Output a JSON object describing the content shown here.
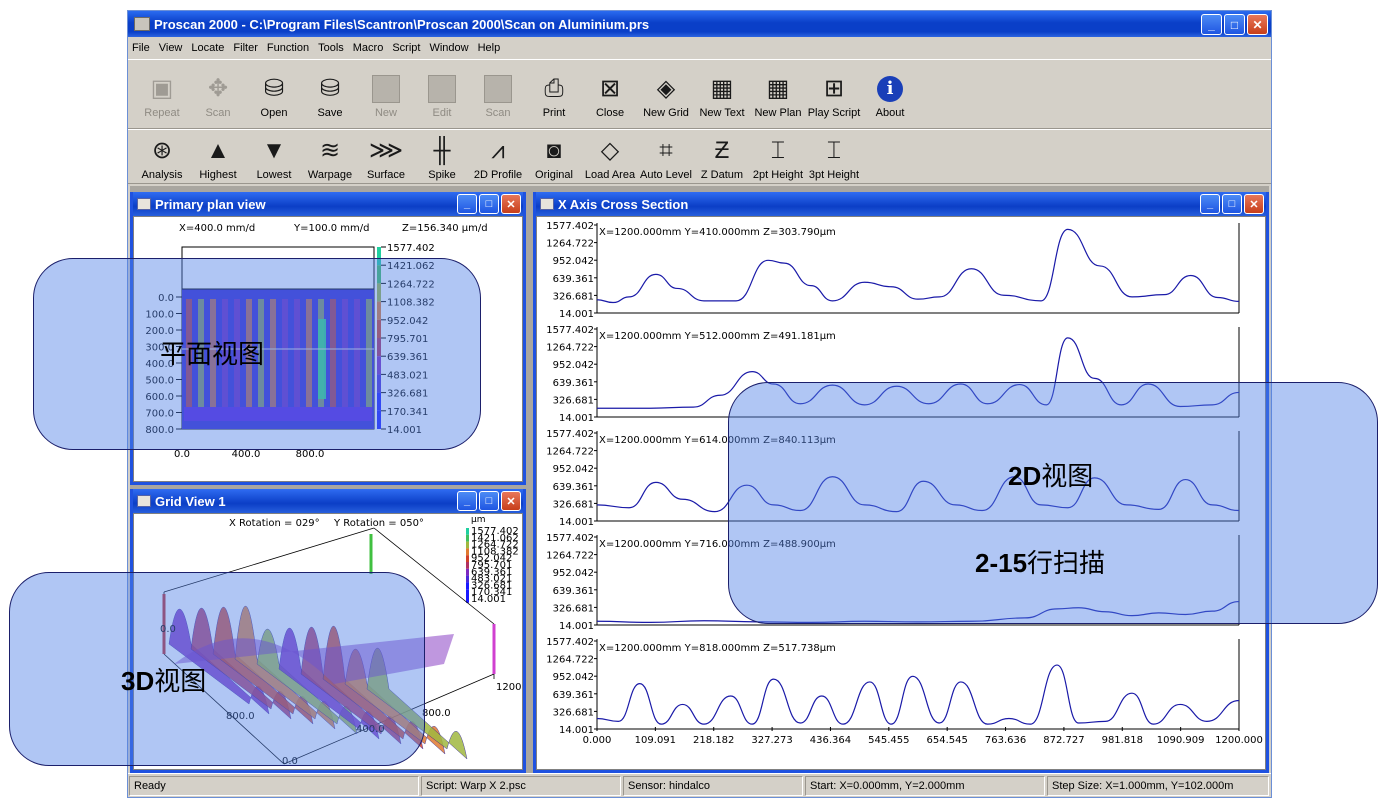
{
  "window": {
    "title": "Proscan 2000 - C:\\Program Files\\Scantron\\Proscan 2000\\Scan on Aluminium.prs",
    "min": "_",
    "max": "□",
    "close": "✕"
  },
  "menu": [
    "File",
    "View",
    "Locate",
    "Filter",
    "Function",
    "Tools",
    "Macro",
    "Script",
    "Window",
    "Help"
  ],
  "toolbar1": [
    {
      "label": "Repeat",
      "icon": "repeat-icon",
      "glyph": "▣",
      "disabled": true
    },
    {
      "label": "Scan",
      "icon": "scan-icon",
      "glyph": "✥",
      "disabled": true
    },
    {
      "label": "Open",
      "icon": "open-icon",
      "glyph": "⛁",
      "disabled": false
    },
    {
      "label": "Save",
      "icon": "save-icon",
      "glyph": "⛁",
      "disabled": false
    },
    {
      "label": "New",
      "icon": "new-icon",
      "glyph": "",
      "disabled": true
    },
    {
      "label": "Edit",
      "icon": "edit-icon",
      "glyph": "",
      "disabled": true
    },
    {
      "label": "Scan",
      "icon": "scan2-icon",
      "glyph": "",
      "disabled": true
    },
    {
      "label": "Print",
      "icon": "print-icon",
      "glyph": "⎙",
      "disabled": false
    },
    {
      "label": "Close",
      "icon": "close-file-icon",
      "glyph": "⊠",
      "disabled": false
    },
    {
      "label": "New Grid",
      "icon": "new-grid-icon",
      "glyph": "◈",
      "disabled": false
    },
    {
      "label": "New Text",
      "icon": "new-text-icon",
      "glyph": "▦",
      "disabled": false
    },
    {
      "label": "New Plan",
      "icon": "new-plan-icon",
      "glyph": "▦",
      "disabled": false
    },
    {
      "label": "Play Script",
      "icon": "play-script-icon",
      "glyph": "⊞",
      "disabled": false
    },
    {
      "label": "About",
      "icon": "about-icon",
      "glyph": "i",
      "disabled": false
    }
  ],
  "toolbar2": [
    {
      "label": "Analysis",
      "icon": "analysis-icon",
      "glyph": "⊛"
    },
    {
      "label": "Highest",
      "icon": "highest-icon",
      "glyph": "▲"
    },
    {
      "label": "Lowest",
      "icon": "lowest-icon",
      "glyph": "▼"
    },
    {
      "label": "Warpage",
      "icon": "warpage-icon",
      "glyph": "≋"
    },
    {
      "label": "Surface",
      "icon": "surface-icon",
      "glyph": "⋙"
    },
    {
      "label": "Spike",
      "icon": "spike-icon",
      "glyph": "╫"
    },
    {
      "label": "2D Profile",
      "icon": "profile-2d-icon",
      "glyph": "⩘"
    },
    {
      "label": "Original",
      "icon": "original-icon",
      "glyph": "◙"
    },
    {
      "label": "Load Area",
      "icon": "load-area-icon",
      "glyph": "◇"
    },
    {
      "label": "Auto Level",
      "icon": "auto-level-icon",
      "glyph": "⌗"
    },
    {
      "label": "Z Datum",
      "icon": "z-datum-icon",
      "glyph": "Ƶ"
    },
    {
      "label": "2pt Height",
      "icon": "two-pt-height-icon",
      "glyph": "⌶"
    },
    {
      "label": "3pt Height",
      "icon": "three-pt-height-icon",
      "glyph": "⌶"
    }
  ],
  "plan": {
    "title": "Primary plan view",
    "readout": {
      "x": "X=400.0 mm/d",
      "y": "Y=100.0 mm/d",
      "z": "Z=156.340 µm/d"
    },
    "yticks": [
      "0.0",
      "100.0",
      "200.0",
      "300.0",
      "400.0",
      "500.0",
      "600.0",
      "700.0",
      "800.0"
    ],
    "xticks": [
      "0.0",
      "400.0",
      "800.0"
    ],
    "colorbar": [
      "1577.402",
      "1421.062",
      "1264.722",
      "1108.382",
      "952.042",
      "795.701",
      "639.361",
      "483.021",
      "326.681",
      "170.341",
      "14.001"
    ]
  },
  "grid": {
    "title": "Grid View 1",
    "xrot": "X Rotation = 029°",
    "yrot": "Y Rotation = 050°",
    "unit": "µm",
    "colorbar": [
      "1577.402",
      "1421.062",
      "1264.722",
      "1108.382",
      "952.042",
      "795.701",
      "639.361",
      "483.021",
      "326.681",
      "170.341",
      "14.001"
    ],
    "axis": [
      "0.0",
      "800.0",
      "400.0",
      "0.0",
      "800.0",
      "1200."
    ]
  },
  "cross": {
    "title": "X Axis Cross Section",
    "yticks": [
      "1577.402",
      "1264.722",
      "952.042",
      "639.361",
      "326.681",
      "14.001"
    ],
    "xticks": [
      "0.000",
      "109.091",
      "218.182",
      "327.273",
      "436.364",
      "545.455",
      "654.545",
      "763.636",
      "872.727",
      "981.818",
      "1090.909",
      "1200.000"
    ],
    "xmin": 0,
    "xmax": 1200,
    "ymin": 14.001,
    "ymax": 1577.402
  },
  "chart_data": {
    "type": "line",
    "title": "X Axis Cross Section",
    "xlim": [
      0,
      1200
    ],
    "ylim": [
      14.001,
      1577.402
    ],
    "series": [
      {
        "name": "X=1200.000mm  Y=410.000mm  Z=303.790µm",
        "x": [
          0,
          30,
          60,
          110,
          150,
          200,
          260,
          320,
          350,
          400,
          440,
          500,
          550,
          600,
          640,
          700,
          760,
          830,
          880,
          940,
          1000,
          1060,
          1110,
          1160,
          1200
        ],
        "y": [
          250,
          200,
          300,
          700,
          450,
          230,
          230,
          950,
          900,
          500,
          230,
          560,
          480,
          260,
          300,
          800,
          330,
          230,
          1500,
          850,
          300,
          340,
          680,
          290,
          220
        ]
      },
      {
        "name": "X=1200.000mm  Y=512.000mm  Z=491.181µm",
        "x": [
          0,
          100,
          180,
          230,
          290,
          330,
          380,
          440,
          500,
          560,
          620,
          680,
          730,
          790,
          840,
          880,
          930,
          980,
          1030,
          1090,
          1150,
          1200
        ],
        "y": [
          170,
          170,
          190,
          400,
          820,
          600,
          250,
          580,
          230,
          560,
          250,
          600,
          250,
          590,
          230,
          1420,
          700,
          230,
          600,
          200,
          230,
          450
        ]
      },
      {
        "name": "X=1200.000mm  Y=614.000mm  Z=840.113µm",
        "x": [
          0,
          60,
          110,
          160,
          220,
          280,
          330,
          380,
          440,
          500,
          560,
          610,
          670,
          720,
          780,
          830,
          880,
          930,
          990,
          1050,
          1100,
          1150,
          1200
        ],
        "y": [
          300,
          250,
          700,
          400,
          180,
          650,
          300,
          200,
          800,
          300,
          180,
          720,
          300,
          200,
          800,
          300,
          250,
          780,
          300,
          220,
          750,
          300,
          200
        ]
      },
      {
        "name": "X=1200.000mm  Y=716.000mm  Z=488.900µm",
        "x": [
          0,
          100,
          200,
          300,
          400,
          500,
          600,
          700,
          800,
          860,
          900,
          950,
          1000,
          1050,
          1100,
          1150,
          1200
        ],
        "y": [
          80,
          60,
          90,
          70,
          60,
          80,
          70,
          80,
          140,
          300,
          320,
          250,
          180,
          230,
          200,
          260,
          430
        ]
      },
      {
        "name": "X=1200.000mm  Y=818.000mm  Z=517.738µm",
        "x": [
          0,
          40,
          80,
          120,
          160,
          200,
          250,
          290,
          330,
          380,
          420,
          460,
          510,
          550,
          590,
          640,
          680,
          730,
          770,
          810,
          860,
          900,
          950,
          1000,
          1040,
          1090,
          1140,
          1200
        ],
        "y": [
          200,
          150,
          820,
          100,
          450,
          100,
          600,
          100,
          900,
          120,
          600,
          100,
          850,
          100,
          950,
          120,
          850,
          100,
          200,
          100,
          1150,
          120,
          150,
          650,
          100,
          450,
          150,
          520
        ]
      }
    ]
  },
  "status": {
    "ready": "Ready",
    "script": "Script: Warp X 2.psc",
    "sensor": "Sensor: hindalco",
    "start": "Start: X=0.000mm, Y=2.000mm",
    "step": "Step Size: X=1.000mm, Y=102.000m"
  },
  "annotations": {
    "plan_bold": "",
    "plan_rest": "平面视图",
    "view2d_bold": "2D",
    "view2d_rest": "视图",
    "rows_bold": "2-15",
    "rows_rest": "行扫描",
    "view3d_bold": "3D",
    "view3d_rest": "视图"
  }
}
